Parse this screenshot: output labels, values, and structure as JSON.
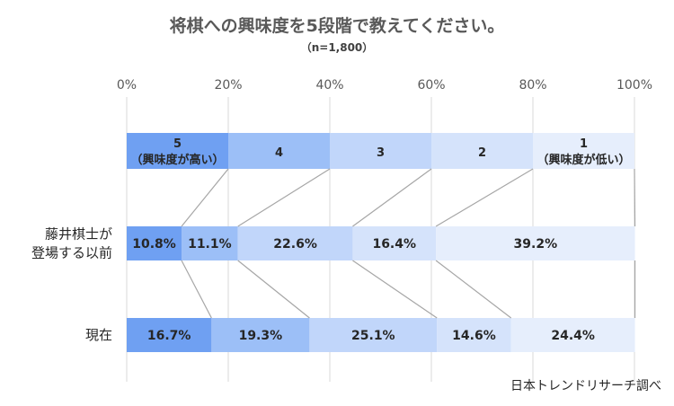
{
  "title": "将棋への興味度を5段階で教えてください。",
  "subtitle": "（n=1,800）",
  "source": "日本トレンドリサーチ調べ",
  "colors": [
    "#6fa0f2",
    "#9cbff7",
    "#c1d6fa",
    "#d5e3fb",
    "#e6eefc"
  ],
  "chart_data": {
    "type": "bar",
    "orientation": "horizontal",
    "stacked": true,
    "title": "将棋への興味度を5段階で教えてください。",
    "subtitle": "（n=1,800）",
    "xlim": [
      0,
      100
    ],
    "x_ticks": [
      "0%",
      "20%",
      "40%",
      "60%",
      "80%",
      "100%"
    ],
    "grid": true,
    "legend": {
      "position": "top",
      "entries": [
        {
          "label": "5",
          "sub": "（興味度が高い）",
          "value": 20
        },
        {
          "label": "4",
          "sub": "",
          "value": 20
        },
        {
          "label": "3",
          "sub": "",
          "value": 20
        },
        {
          "label": "2",
          "sub": "",
          "value": 20
        },
        {
          "label": "1",
          "sub": "（興味度が低い）",
          "value": 20
        }
      ]
    },
    "categories": [
      {
        "label_lines": [
          "藤井棋士が",
          "登場する以前"
        ],
        "values": [
          10.8,
          11.1,
          22.6,
          16.4,
          39.2
        ],
        "labels": [
          "10.8%",
          "11.1%",
          "22.6%",
          "16.4%",
          "39.2%"
        ]
      },
      {
        "label_lines": [
          "現在"
        ],
        "values": [
          16.7,
          19.3,
          25.1,
          14.6,
          24.4
        ],
        "labels": [
          "16.7%",
          "19.3%",
          "25.1%",
          "14.6%",
          "24.4%"
        ]
      }
    ]
  }
}
